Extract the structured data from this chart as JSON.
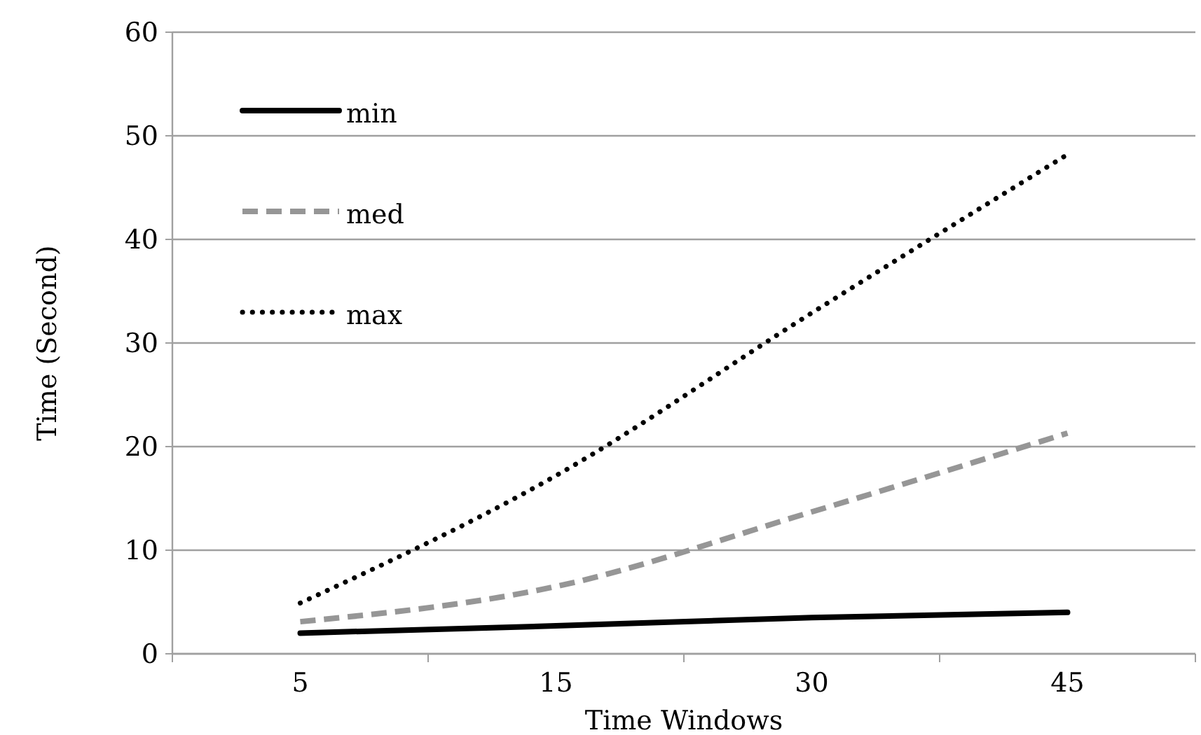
{
  "chart_data": {
    "type": "line",
    "xlabel": "Time  Windows",
    "ylabel": "Time (Second)",
    "categories": [
      "5",
      "15",
      "30",
      "45"
    ],
    "ylim": [
      0,
      60
    ],
    "yticks": [
      0,
      10,
      20,
      30,
      40,
      50,
      60
    ],
    "grid": "y",
    "legend": "top left",
    "series": [
      {
        "name": "min",
        "color": "#000000",
        "line_style": "solid",
        "values": [
          2.0,
          2.7,
          3.5,
          4.0
        ]
      },
      {
        "name": "med",
        "color": "#969696",
        "line_style": "dashed",
        "values": [
          3.1,
          6.5,
          13.7,
          21.3
        ]
      },
      {
        "name": "max",
        "color": "#000000",
        "line_style": "dotted",
        "values": [
          4.9,
          17.2,
          32.9,
          48.2
        ]
      }
    ]
  }
}
